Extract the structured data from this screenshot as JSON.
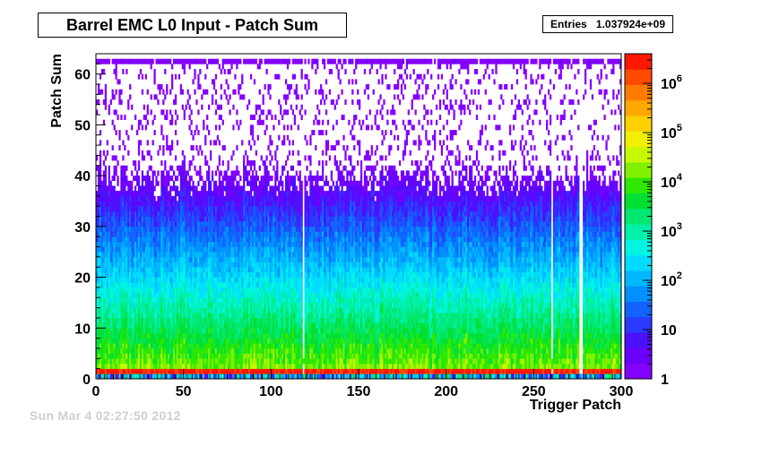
{
  "chart_data": {
    "type": "heatmap",
    "title": "Barrel EMC L0 Input - Patch Sum",
    "stats": {
      "label": "Entries",
      "value": "1.037924e+09"
    },
    "xlabel": "Trigger Patch",
    "ylabel": "Patch Sum",
    "xlim": [
      0,
      300
    ],
    "ylim": [
      0,
      64
    ],
    "x_ticks": [
      "0",
      "50",
      "100",
      "150",
      "200",
      "250",
      "300"
    ],
    "y_ticks": [
      "0",
      "10",
      "20",
      "30",
      "40",
      "50",
      "60"
    ],
    "colorbar": {
      "scale": "log",
      "range": [
        1,
        4000000
      ],
      "tick_labels": [
        {
          "base": "1",
          "exp": ""
        },
        {
          "base": "10",
          "exp": ""
        },
        {
          "base": "10",
          "exp": "2"
        },
        {
          "base": "10",
          "exp": "3"
        },
        {
          "base": "10",
          "exp": "4"
        },
        {
          "base": "10",
          "exp": "5"
        },
        {
          "base": "10",
          "exp": "6"
        }
      ],
      "colors": [
        "#8400ff",
        "#6a00ff",
        "#4b10ff",
        "#2a3aff",
        "#1164ff",
        "#0090ff",
        "#00b8ff",
        "#00dcff",
        "#00f5e0",
        "#00f0a8",
        "#00e870",
        "#00e034",
        "#2ee800",
        "#80f000",
        "#c8f800",
        "#f0f000",
        "#ffd000",
        "#ffa800",
        "#ff7c00",
        "#ff4a00",
        "#ff1800"
      ]
    },
    "special_rows": {
      "pedestal_bin_y": 1,
      "overflow_bin_y": 62
    },
    "dead_columns": [
      118,
      260,
      276,
      277
    ],
    "footer": "Sun Mar  4 02:27:50 2012"
  }
}
